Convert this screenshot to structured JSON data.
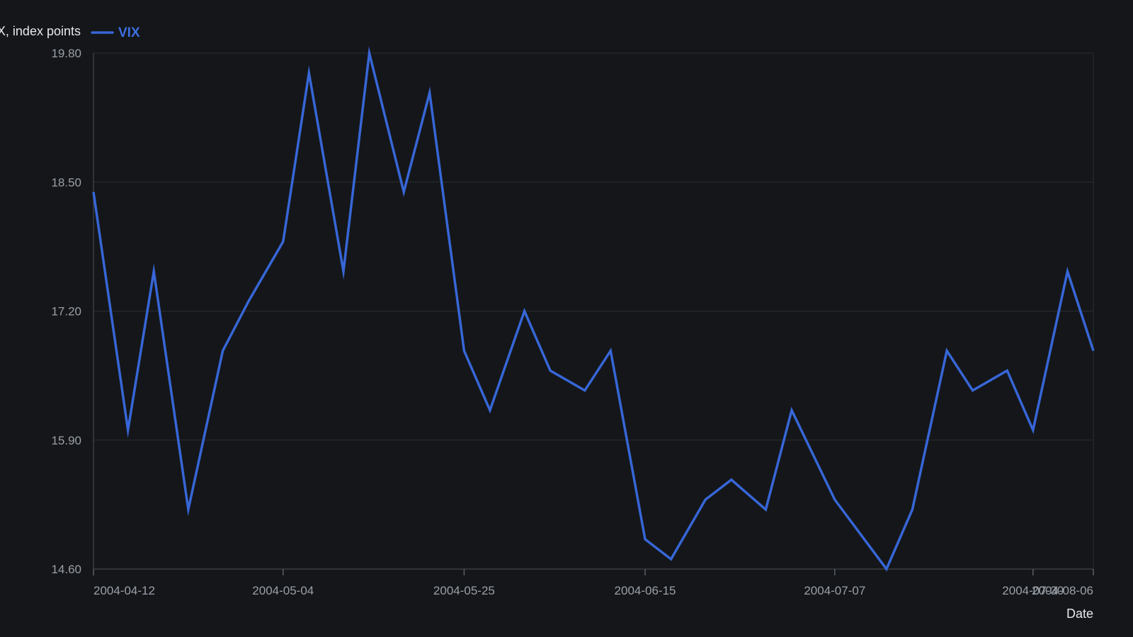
{
  "chart_data": {
    "type": "line",
    "title": "",
    "xlabel": "Date",
    "ylabel": "VIX, index points",
    "legend_position": "top-left",
    "grid": true,
    "ylim": [
      14.6,
      19.8
    ],
    "yticks": [
      "14.60",
      "15.90",
      "17.20",
      "18.50",
      "19.80"
    ],
    "xlim": [
      "2004-04-12",
      "2004-08-06"
    ],
    "xticks": [
      "2004-04-12",
      "2004-05-04",
      "2004-05-25",
      "2004-06-15",
      "2004-07-07",
      "2004-07-30",
      "2004-08-06"
    ],
    "colors": {
      "background": "#141619",
      "series": "#3766d6"
    },
    "series": [
      {
        "name": "VIX",
        "x": [
          "2004-04-12",
          "2004-04-16",
          "2004-04-19",
          "2004-04-23",
          "2004-04-27",
          "2004-04-30",
          "2004-05-04",
          "2004-05-07",
          "2004-05-11",
          "2004-05-14",
          "2004-05-18",
          "2004-05-21",
          "2004-05-25",
          "2004-05-28",
          "2004-06-01",
          "2004-06-04",
          "2004-06-08",
          "2004-06-11",
          "2004-06-15",
          "2004-06-18",
          "2004-06-22",
          "2004-06-25",
          "2004-06-29",
          "2004-07-02",
          "2004-07-07",
          "2004-07-13",
          "2004-07-16",
          "2004-07-20",
          "2004-07-23",
          "2004-07-27",
          "2004-07-30",
          "2004-08-03",
          "2004-08-06"
        ],
        "y": [
          18.4,
          16.0,
          17.6,
          15.2,
          16.8,
          17.3,
          17.9,
          19.6,
          17.6,
          19.8,
          18.4,
          19.4,
          16.8,
          16.2,
          17.2,
          16.6,
          16.4,
          16.8,
          14.9,
          14.7,
          15.3,
          15.5,
          15.2,
          16.2,
          15.3,
          14.6,
          15.2,
          16.8,
          16.4,
          16.6,
          16.0,
          17.6,
          16.8
        ]
      }
    ]
  }
}
